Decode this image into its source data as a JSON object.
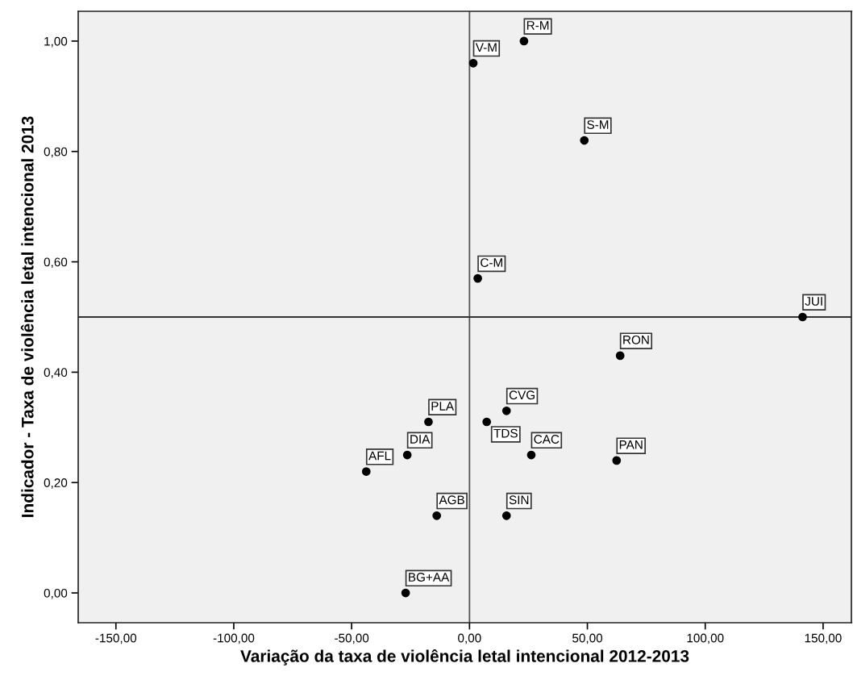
{
  "chart_data": {
    "type": "scatter",
    "xlabel": "Variação da taxa de violência letal intencional 2012-2013",
    "ylabel": "Indicador - Taxa de violência letal intencional 2013",
    "series": [
      {
        "color": "#000000",
        "x": [
          23.1,
          1.6,
          48.7,
          3.5,
          141.3,
          63.9,
          -17.4,
          7.3,
          15.7,
          26.2,
          62.4,
          -26.4,
          -43.8,
          -13.9,
          15.7,
          -27.1
        ],
        "values": [
          1.0,
          0.96,
          0.82,
          0.57,
          0.5,
          0.43,
          0.31,
          0.31,
          0.33,
          0.25,
          0.24,
          0.25,
          0.22,
          0.14,
          0.14,
          0.0
        ]
      }
    ],
    "marker": "circle",
    "grid": false,
    "xlim": [
      -166,
      162
    ],
    "ylim": [
      -0.054,
      1.054
    ],
    "xticks": [
      {
        "value": -150,
        "label": "-150,00"
      },
      {
        "value": -100,
        "label": "-100,00"
      },
      {
        "value": -50,
        "label": "-50,00"
      },
      {
        "value": 0,
        "label": "0,00"
      },
      {
        "value": 50,
        "label": "50,00"
      },
      {
        "value": 100,
        "label": "100,00"
      },
      {
        "value": 150,
        "label": "150,00"
      }
    ],
    "yticks": [
      {
        "value": 0,
        "label": "0,00"
      },
      {
        "value": 0.2,
        "label": "0,20"
      },
      {
        "value": 0.4,
        "label": "0,40"
      },
      {
        "value": 0.6,
        "label": "0,60"
      },
      {
        "value": 0.8,
        "label": "0,80"
      },
      {
        "value": 1.0,
        "label": "1,00"
      }
    ],
    "ref_lines": [
      {
        "axis": "x",
        "value": 0,
        "color": "#555555"
      },
      {
        "axis": "y",
        "value": 0.5,
        "color": "#333333"
      }
    ],
    "annotations": [
      {
        "text": "R-M",
        "x": 23.1,
        "y": 1.0
      },
      {
        "text": "V-M",
        "x": 1.6,
        "y": 0.96
      },
      {
        "text": "S-M",
        "x": 48.7,
        "y": 0.82
      },
      {
        "text": "C-M",
        "x": 3.5,
        "y": 0.57
      },
      {
        "text": "JUI",
        "x": 141.3,
        "y": 0.5
      },
      {
        "text": "RON",
        "x": 63.9,
        "y": 0.43
      },
      {
        "text": "PLA",
        "x": -17.4,
        "y": 0.31
      },
      {
        "text": "TDS",
        "x": 7.3,
        "y": 0.31
      },
      {
        "text": "CVG",
        "x": 15.7,
        "y": 0.33
      },
      {
        "text": "CAC",
        "x": 26.2,
        "y": 0.25
      },
      {
        "text": "PAN",
        "x": 62.4,
        "y": 0.24
      },
      {
        "text": "DIA",
        "x": -26.4,
        "y": 0.25
      },
      {
        "text": "AFL",
        "x": -43.8,
        "y": 0.22
      },
      {
        "text": "AGB",
        "x": -13.9,
        "y": 0.14
      },
      {
        "text": "SIN",
        "x": 15.7,
        "y": 0.14
      },
      {
        "text": "BG+AA",
        "x": -27.1,
        "y": 0.0
      }
    ]
  }
}
